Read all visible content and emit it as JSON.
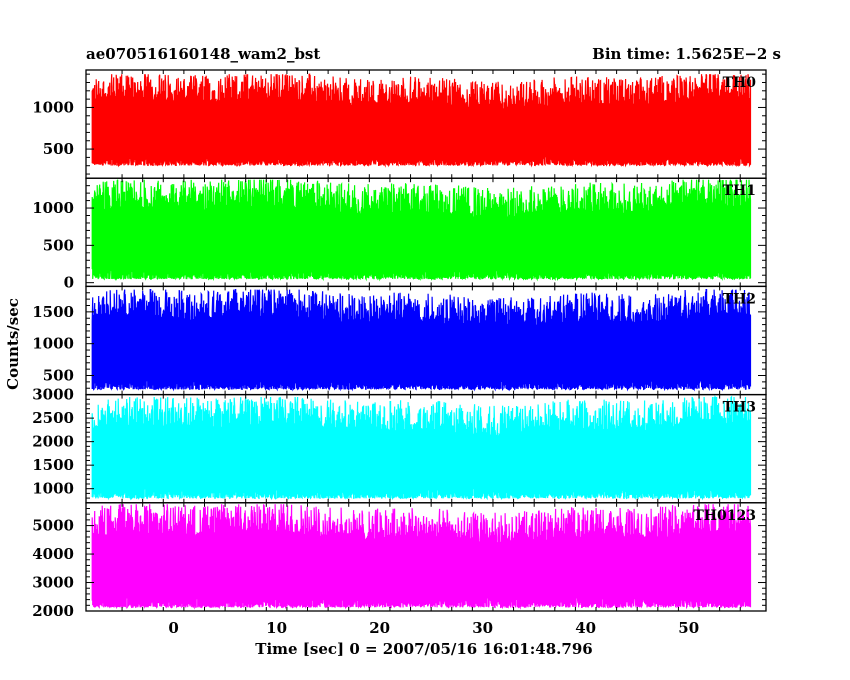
{
  "header": {
    "left_title": "ae070516160148_wam2_bst",
    "right_title": "Bin time: 1.5625E−2 s"
  },
  "chart_data": {
    "type": "line",
    "title": "ae070516160148_wam2_bst",
    "subtitle": "Bin time: 1.5625E−2 s",
    "xlabel": "Time [sec] 0 = 2007/05/16 16:01:48.796",
    "ylabel": "Counts/sec",
    "xlim": [
      -8.5,
      57.5
    ],
    "x_data_range": [
      -7.9,
      56.0
    ],
    "xticks": [
      0,
      10,
      20,
      30,
      40,
      50
    ],
    "grid": false,
    "legend": "none",
    "panels": [
      {
        "name": "TH0",
        "color": "#ff0000",
        "ylim": [
          150,
          1450
        ],
        "yticks": [
          500,
          1000
        ],
        "mean": 600,
        "range_low": 280,
        "range_high": 1400
      },
      {
        "name": "TH1",
        "color": "#00ff00",
        "ylim": [
          -50,
          1400
        ],
        "yticks": [
          0,
          500,
          1000
        ],
        "mean": 560,
        "range_low": 20,
        "range_high": 1380
      },
      {
        "name": "TH2",
        "color": "#0000ff",
        "ylim": [
          200,
          1900
        ],
        "yticks": [
          500,
          1000,
          1500
        ],
        "mean": 950,
        "range_low": 250,
        "range_high": 1850
      },
      {
        "name": "TH3",
        "color": "#00ffff",
        "ylim": [
          700,
          3000
        ],
        "yticks": [
          1000,
          1500,
          2000,
          2500,
          3000
        ],
        "mean": 1900,
        "range_low": 750,
        "range_high": 2950
      },
      {
        "name": "TH0123",
        "color": "#ff00ff",
        "ylim": [
          2000,
          5800
        ],
        "yticks": [
          2000,
          3000,
          4000,
          5000
        ],
        "mean": 3900,
        "range_low": 2050,
        "range_high": 5750
      }
    ]
  }
}
